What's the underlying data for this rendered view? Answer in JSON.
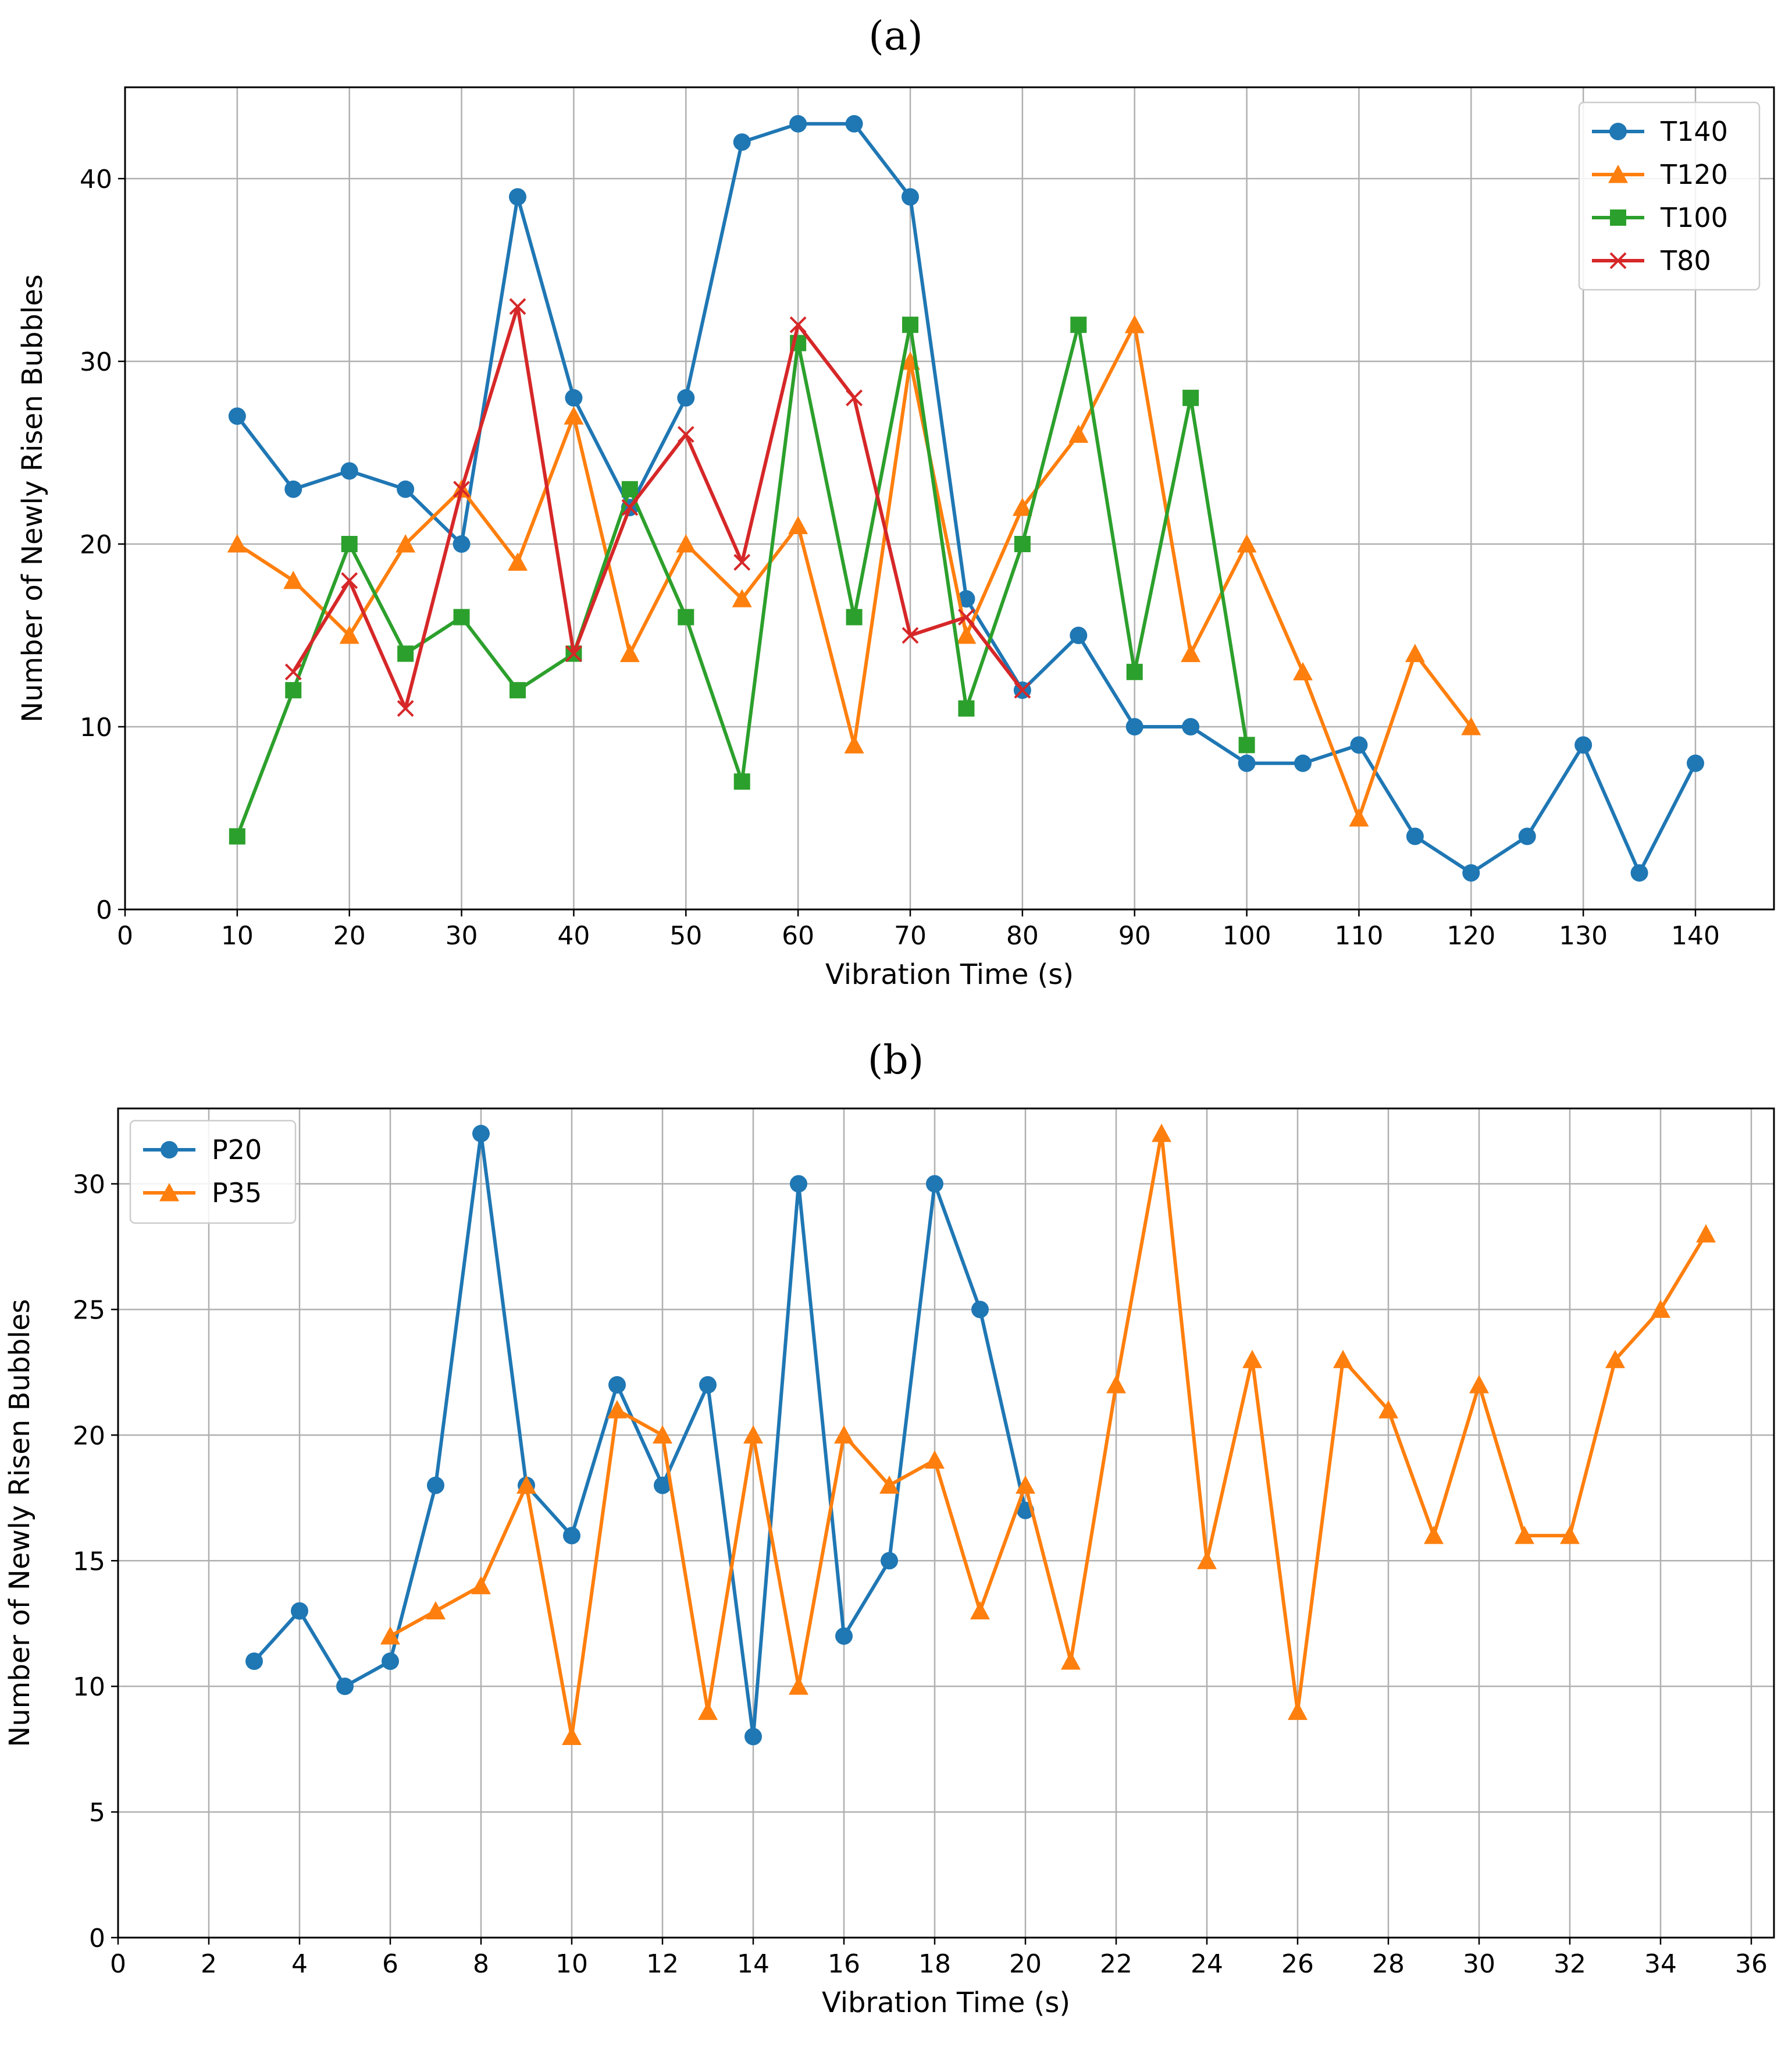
{
  "chart_data": [
    {
      "panel": "(a)",
      "type": "line",
      "xlabel": "Vibration Time (s)",
      "ylabel": "Number of Newly Risen Bubbles",
      "xlim": [
        0,
        147
      ],
      "ylim": [
        0,
        45
      ],
      "xticks": [
        0,
        10,
        20,
        30,
        40,
        50,
        60,
        70,
        80,
        90,
        100,
        110,
        120,
        130,
        140
      ],
      "yticks": [
        0,
        10,
        20,
        30,
        40
      ],
      "grid": true,
      "legend_position": "top-right",
      "series": [
        {
          "name": "T140",
          "color": "#1f77b4",
          "marker": "circle",
          "x": [
            10,
            15,
            20,
            25,
            30,
            35,
            40,
            45,
            50,
            55,
            60,
            65,
            70,
            75,
            80,
            85,
            90,
            95,
            100,
            105,
            110,
            115,
            120,
            125,
            130,
            135,
            140
          ],
          "y": [
            27,
            23,
            24,
            23,
            20,
            39,
            28,
            22,
            28,
            42,
            43,
            43,
            39,
            17,
            12,
            15,
            10,
            10,
            8,
            8,
            9,
            4,
            2,
            4,
            9,
            2,
            8
          ]
        },
        {
          "name": "T120",
          "color": "#ff7f0e",
          "marker": "triangle",
          "x": [
            10,
            15,
            20,
            25,
            30,
            35,
            40,
            45,
            50,
            55,
            60,
            65,
            70,
            75,
            80,
            85,
            90,
            95,
            100,
            105,
            110,
            115,
            120
          ],
          "y": [
            20,
            18,
            15,
            20,
            23,
            19,
            27,
            14,
            20,
            17,
            21,
            9,
            30,
            15,
            22,
            26,
            32,
            14,
            20,
            13,
            5,
            14,
            10
          ]
        },
        {
          "name": "T100",
          "color": "#2ca02c",
          "marker": "square",
          "x": [
            10,
            15,
            20,
            25,
            30,
            35,
            40,
            45,
            50,
            55,
            60,
            65,
            70,
            75,
            80,
            85,
            90,
            95,
            100
          ],
          "y": [
            4,
            12,
            20,
            14,
            16,
            12,
            14,
            23,
            16,
            7,
            31,
            16,
            32,
            11,
            20,
            32,
            13,
            28,
            9
          ]
        },
        {
          "name": "T80",
          "color": "#d62728",
          "marker": "x",
          "x": [
            15,
            20,
            25,
            30,
            35,
            40,
            45,
            50,
            55,
            60,
            65,
            70,
            75,
            80
          ],
          "y": [
            13,
            18,
            11,
            23,
            33,
            14,
            22,
            26,
            19,
            32,
            28,
            15,
            16,
            12
          ]
        }
      ]
    },
    {
      "panel": "(b)",
      "type": "line",
      "xlabel": "Vibration Time (s)",
      "ylabel": "Number of Newly Risen Bubbles",
      "xlim": [
        0,
        36.5
      ],
      "ylim": [
        0,
        33
      ],
      "xticks": [
        0,
        2,
        4,
        6,
        8,
        10,
        12,
        14,
        16,
        18,
        20,
        22,
        24,
        26,
        28,
        30,
        32,
        34,
        36
      ],
      "yticks": [
        0,
        5,
        10,
        15,
        20,
        25,
        30
      ],
      "grid": true,
      "legend_position": "top-left",
      "series": [
        {
          "name": "P20",
          "color": "#1f77b4",
          "marker": "circle",
          "x": [
            3,
            4,
            5,
            6,
            7,
            8,
            9,
            10,
            11,
            12,
            13,
            14,
            15,
            16,
            17,
            18,
            19,
            20
          ],
          "y": [
            11,
            13,
            10,
            11,
            18,
            32,
            18,
            16,
            22,
            18,
            22,
            8,
            30,
            12,
            15,
            30,
            25,
            17
          ]
        },
        {
          "name": "P35",
          "color": "#ff7f0e",
          "marker": "triangle",
          "x": [
            6,
            7,
            8,
            9,
            10,
            11,
            12,
            13,
            14,
            15,
            16,
            17,
            18,
            19,
            20,
            21,
            22,
            23,
            24,
            25,
            26,
            27,
            28,
            29,
            30,
            31,
            32,
            33,
            34,
            35
          ],
          "y": [
            12,
            13,
            14,
            18,
            8,
            21,
            20,
            9,
            20,
            10,
            20,
            18,
            19,
            13,
            18,
            11,
            22,
            32,
            15,
            23,
            9,
            23,
            21,
            16,
            22,
            16,
            16,
            23,
            25,
            28
          ]
        }
      ]
    }
  ]
}
